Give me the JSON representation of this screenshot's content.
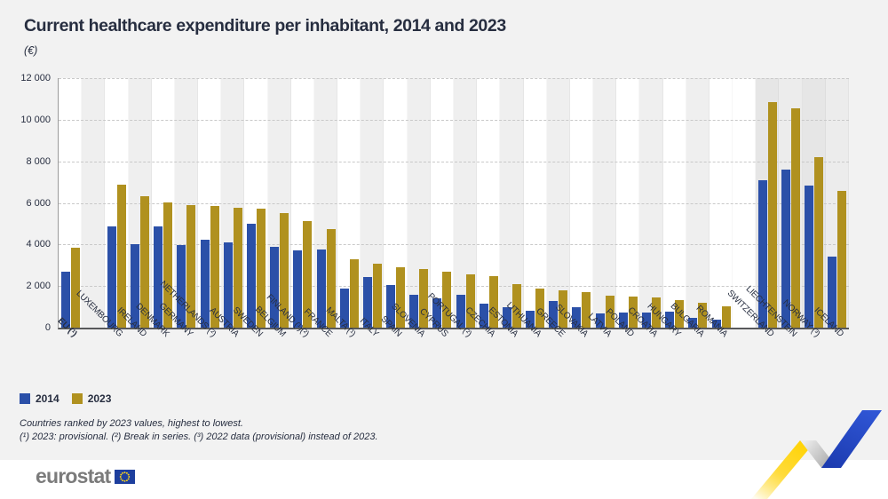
{
  "header": {
    "title": "Current healthcare expenditure per inhabitant, 2014 and 2023",
    "subtitle": "(€)"
  },
  "legend": {
    "items": [
      {
        "label": "2014",
        "color": "#2b50a8"
      },
      {
        "label": "2023",
        "color": "#b0911f"
      }
    ]
  },
  "footnotes": [
    "Countries ranked by 2023 values, highest to lowest.",
    "(¹) 2023: provisional. (²) Break in series. (³) 2022 data (provisional) instead of 2023."
  ],
  "footer": {
    "logo_text": "eurostat",
    "flag_icon": "eu-flag-icon",
    "brand_blue": "#1e3f9e",
    "brand_yellow": "#ffd617"
  },
  "chart_data": {
    "type": "bar",
    "title": "Current healthcare expenditure per inhabitant, 2014 and 2023",
    "unit": "(€)",
    "xlabel": "",
    "ylabel": "",
    "ylim": [
      0,
      12000
    ],
    "grid": "horizontal-dashed",
    "legend_position": "bottom-left",
    "yticks": [
      {
        "value": 0,
        "label": "0"
      },
      {
        "value": 2000,
        "label": "2 000"
      },
      {
        "value": 4000,
        "label": "4 000"
      },
      {
        "value": 6000,
        "label": "6 000"
      },
      {
        "value": 8000,
        "label": "8 000"
      },
      {
        "value": 10000,
        "label": "10 000"
      },
      {
        "value": 12000,
        "label": "12 000"
      }
    ],
    "total_slots": 34,
    "efta_slots": [
      30,
      31,
      32,
      33
    ],
    "categories": [
      {
        "label": "EU (¹)",
        "slot": 0,
        "bold": true
      },
      {
        "label": "LUXEMBOURG",
        "slot": 2
      },
      {
        "label": "IRELAND",
        "slot": 3
      },
      {
        "label": "DENMARK",
        "slot": 4
      },
      {
        "label": "GERMANY",
        "slot": 5
      },
      {
        "label": "NETHERLANDS (²)",
        "slot": 6
      },
      {
        "label": "AUSTRIA",
        "slot": 7
      },
      {
        "label": "SWEDEN",
        "slot": 8
      },
      {
        "label": "BELGIUM",
        "slot": 9
      },
      {
        "label": "FINLAND (¹)(²)",
        "slot": 10
      },
      {
        "label": "FRANCE",
        "slot": 11
      },
      {
        "label": "MALTA (¹)",
        "slot": 12
      },
      {
        "label": "ITALY",
        "slot": 13
      },
      {
        "label": "SPAIN",
        "slot": 14
      },
      {
        "label": "SLOVENIA",
        "slot": 15
      },
      {
        "label": "CYPRUS",
        "slot": 16
      },
      {
        "label": "PORTUGAL (²)",
        "slot": 17
      },
      {
        "label": "CZECHIA",
        "slot": 18
      },
      {
        "label": "ESTONIA",
        "slot": 19
      },
      {
        "label": "LITHUANIA",
        "slot": 20
      },
      {
        "label": "GREECE",
        "slot": 21
      },
      {
        "label": "SLOVAKIA",
        "slot": 22
      },
      {
        "label": "LATVIA",
        "slot": 23
      },
      {
        "label": "POLAND",
        "slot": 24
      },
      {
        "label": "CROATIA",
        "slot": 25
      },
      {
        "label": "HUNGARY",
        "slot": 26
      },
      {
        "label": "BULGARIA",
        "slot": 27
      },
      {
        "label": "ROMANIA",
        "slot": 28
      },
      {
        "label": "SWITZERLAND",
        "slot": 30
      },
      {
        "label": "LIECHTENSTEIN",
        "slot": 31
      },
      {
        "label": "NORWAY (³)",
        "slot": 32
      },
      {
        "label": "ICELAND",
        "slot": 33
      }
    ],
    "series": [
      {
        "name": "2014",
        "color": "#2b50a8",
        "values": [
          2700,
          4860,
          4010,
          4860,
          3980,
          4220,
          4080,
          5000,
          3900,
          3730,
          3770,
          1860,
          2430,
          2070,
          1570,
          1430,
          1570,
          1150,
          990,
          800,
          1290,
          990,
          680,
          720,
          720,
          780,
          480,
          400,
          7110,
          7600,
          6840,
          3430
        ]
      },
      {
        "name": "2023",
        "color": "#b0911f",
        "values": [
          3840,
          6880,
          6310,
          6030,
          5900,
          5870,
          5760,
          5720,
          5490,
          5120,
          4750,
          3310,
          3070,
          2890,
          2810,
          2700,
          2570,
          2470,
          2100,
          1900,
          1800,
          1700,
          1520,
          1490,
          1460,
          1320,
          1190,
          1010,
          10860,
          10530,
          8210,
          6560
        ]
      }
    ]
  }
}
